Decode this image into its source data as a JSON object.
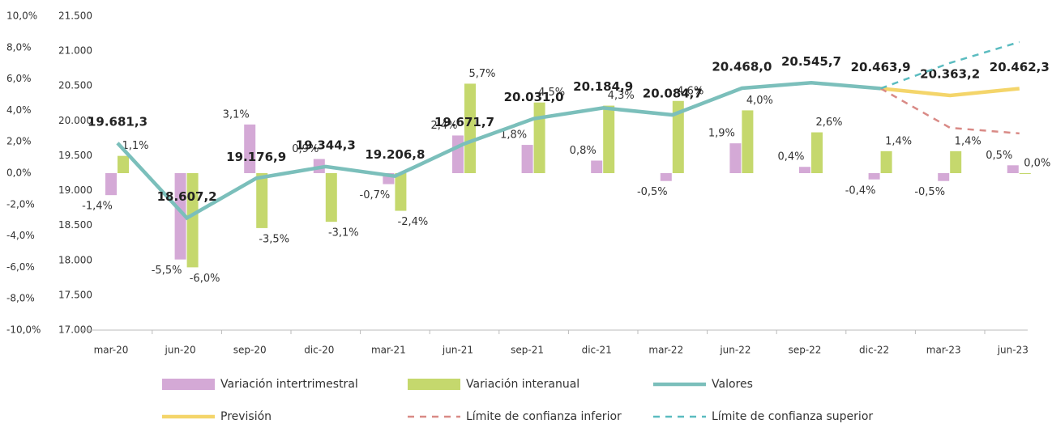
{
  "chart_data": {
    "type": "bar",
    "categories": [
      "mar-20",
      "jun-20",
      "sep-20",
      "dic-20",
      "mar-21",
      "jun-21",
      "sep-21",
      "dic-21",
      "mar-22",
      "jun-22",
      "sep-22",
      "dic-22",
      "mar-23",
      "jun-23"
    ],
    "ylim": [
      -10,
      10
    ],
    "yticks": [
      {
        "value": -10,
        "label": "-10,0%"
      },
      {
        "value": -8,
        "label": "-8,0%"
      },
      {
        "value": -6,
        "label": "-6,0%"
      },
      {
        "value": -4,
        "label": "-4,0%"
      },
      {
        "value": -2,
        "label": "-2,0%"
      },
      {
        "value": 0,
        "label": "0,0%"
      },
      {
        "value": 2,
        "label": "2,0%"
      },
      {
        "value": 4,
        "label": "4,0%"
      },
      {
        "value": 6,
        "label": "6,0%"
      },
      {
        "value": 8,
        "label": "8,0%"
      },
      {
        "value": 10,
        "label": "10,0%"
      }
    ],
    "y2lim": [
      17000,
      21500
    ],
    "y2ticks": [
      {
        "value": 17000,
        "label": "17.000"
      },
      {
        "value": 17500,
        "label": "17.500"
      },
      {
        "value": 18000,
        "label": "18.000"
      },
      {
        "value": 18500,
        "label": "18.500"
      },
      {
        "value": 19000,
        "label": "19.000"
      },
      {
        "value": 19500,
        "label": "19.500"
      },
      {
        "value": 20000,
        "label": "20.000"
      },
      {
        "value": 20500,
        "label": "20.500"
      },
      {
        "value": 21000,
        "label": "21.000"
      },
      {
        "value": 21500,
        "label": "21.500"
      }
    ],
    "series": [
      {
        "name": "Variación intertrimestral",
        "type": "bar",
        "color": "#d4a9d6",
        "values": [
          -1.4,
          -5.5,
          3.1,
          0.9,
          -0.7,
          2.4,
          1.8,
          0.8,
          -0.5,
          1.9,
          0.4,
          -0.4,
          -0.5,
          0.5
        ],
        "value_labels": [
          "-1,4%",
          "-5,5%",
          "3,1%",
          "0,9%",
          "-0,7%",
          "2,4%",
          "1,8%",
          "0,8%",
          "-0,5%",
          "1,9%",
          "0,4%",
          "-0,4%",
          "-0,5%",
          "0,5%"
        ]
      },
      {
        "name": "Variación interanual",
        "type": "bar",
        "color": "#c5d86d",
        "values": [
          1.1,
          -6.0,
          -3.5,
          -3.1,
          -2.4,
          5.7,
          4.5,
          4.3,
          4.6,
          4.0,
          2.6,
          1.4,
          1.4,
          0.0
        ],
        "value_labels": [
          "1,1%",
          "-6,0%",
          "-3,5%",
          "-3,1%",
          "-2,4%",
          "5,7%",
          "4,5%",
          "4,3%",
          "4,6%",
          "4,0%",
          "2,6%",
          "1,4%",
          "1,4%",
          "0,0%"
        ]
      },
      {
        "name": "Valores",
        "type": "line",
        "axis": "y2",
        "color": "#7bbfbb",
        "values": [
          19681.3,
          18607.2,
          19176.9,
          19344.3,
          19206.8,
          19671.7,
          20031.0,
          20184.9,
          20084.7,
          20468.0,
          20545.7,
          20463.9,
          null,
          null
        ],
        "value_labels": [
          "19.681,3",
          "18.607,2",
          "19.176,9",
          "19.344,3",
          "19.206,8",
          "19.671,7",
          "20.031,0",
          "20.184,9",
          "20.084,7",
          "20.468,0",
          "20.545,7",
          "20.463,9",
          null,
          null
        ]
      },
      {
        "name": "Previsión",
        "type": "line",
        "axis": "y2",
        "color": "#f4d56a",
        "values": [
          null,
          null,
          null,
          null,
          null,
          null,
          null,
          null,
          null,
          null,
          null,
          20463.9,
          20363.2,
          20462.3
        ],
        "value_labels": [
          null,
          null,
          null,
          null,
          null,
          null,
          null,
          null,
          null,
          null,
          null,
          null,
          "20.363,2",
          "20.462,3"
        ]
      },
      {
        "name": "Límite de confianza inferior",
        "type": "line",
        "axis": "y2",
        "color": "#d98a86",
        "dashed": true,
        "values": [
          null,
          null,
          null,
          null,
          null,
          null,
          null,
          null,
          null,
          null,
          null,
          20463.9,
          19900,
          19820
        ]
      },
      {
        "name": "Límite de confianza superior",
        "type": "line",
        "axis": "y2",
        "color": "#5bbcc0",
        "dashed": true,
        "values": [
          null,
          null,
          null,
          null,
          null,
          null,
          null,
          null,
          null,
          null,
          null,
          20463.9,
          20830,
          21130
        ]
      }
    ]
  }
}
